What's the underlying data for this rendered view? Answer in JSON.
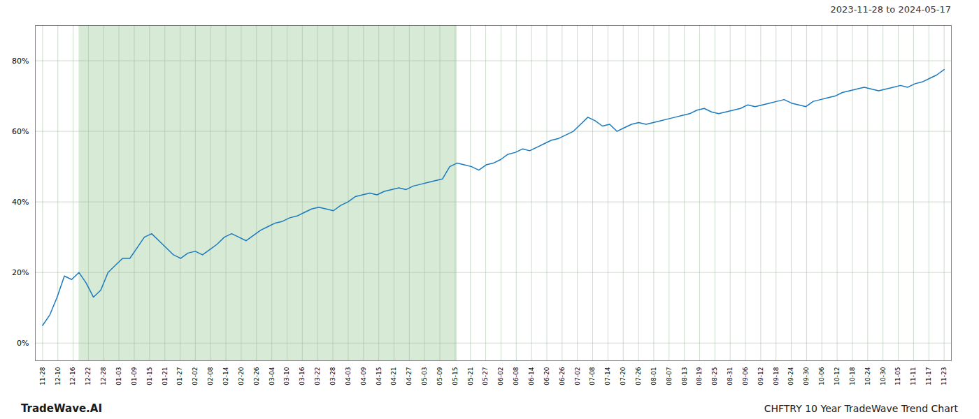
{
  "chart_data": {
    "type": "line",
    "title": "CHFTRY 10 Year TradeWave Trend Chart",
    "subtitle": "2023-11-28 to 2024-05-17",
    "caption": "TradeWave.AI",
    "color": "#1a7abf",
    "grid": true,
    "shaded_region": {
      "x": [
        5,
        57
      ],
      "color": "#d6ead6"
    },
    "xlim": [
      -1,
      125
    ],
    "xtick_labels": [
      "11-28",
      "12-10",
      "12-16",
      "12-22",
      "12-28",
      "01-03",
      "01-09",
      "01-15",
      "01-21",
      "01-27",
      "02-02",
      "02-08",
      "02-14",
      "02-20",
      "02-26",
      "03-04",
      "03-10",
      "03-16",
      "03-22",
      "03-28",
      "04-03",
      "04-09",
      "04-15",
      "04-21",
      "04-27",
      "05-03",
      "05-09",
      "05-15",
      "05-21",
      "05-27",
      "06-02",
      "06-08",
      "06-14",
      "06-20",
      "06-26",
      "07-02",
      "07-08",
      "07-14",
      "07-20",
      "07-26",
      "08-01",
      "08-07",
      "08-13",
      "08-19",
      "08-25",
      "08-31",
      "09-06",
      "09-12",
      "09-18",
      "09-24",
      "09-30",
      "10-06",
      "10-12",
      "10-18",
      "10-24",
      "10-30",
      "11-05",
      "11-11",
      "11-17",
      "11-23"
    ],
    "ylim": [
      -5,
      90
    ],
    "yticks": [
      {
        "value": 0,
        "label": "0%"
      },
      {
        "value": 20,
        "label": "20%"
      },
      {
        "value": 40,
        "label": "40%"
      },
      {
        "value": 60,
        "label": "60%"
      },
      {
        "value": 80,
        "label": "80%"
      }
    ],
    "values": [
      5.0,
      8.0,
      13.0,
      19.0,
      18.0,
      20.0,
      17.0,
      13.0,
      15.0,
      20.0,
      22.0,
      24.0,
      24.0,
      27.0,
      30.0,
      31.0,
      29.0,
      27.0,
      25.0,
      24.0,
      25.5,
      26.0,
      25.0,
      26.5,
      28.0,
      30.0,
      31.0,
      30.0,
      29.0,
      30.5,
      32.0,
      33.0,
      34.0,
      34.5,
      35.5,
      36.0,
      37.0,
      38.0,
      38.5,
      38.0,
      37.5,
      39.0,
      40.0,
      41.5,
      42.0,
      42.5,
      42.0,
      43.0,
      43.5,
      44.0,
      43.5,
      44.5,
      45.0,
      45.5,
      46.0,
      46.5,
      50.0,
      51.0,
      50.5,
      50.0,
      49.0,
      50.5,
      51.0,
      52.0,
      53.5,
      54.0,
      55.0,
      54.5,
      55.5,
      56.5,
      57.5,
      58.0,
      59.0,
      60.0,
      62.0,
      64.0,
      63.0,
      61.5,
      62.0,
      60.0,
      61.0,
      62.0,
      62.5,
      62.0,
      62.5,
      63.0,
      63.5,
      64.0,
      64.5,
      65.0,
      66.0,
      66.5,
      65.5,
      65.0,
      65.5,
      66.0,
      66.5,
      67.5,
      67.0,
      67.5,
      68.0,
      68.5,
      69.0,
      68.0,
      67.5,
      67.0,
      68.5,
      69.0,
      69.5,
      70.0,
      71.0,
      71.5,
      72.0,
      72.5,
      72.0,
      71.5,
      72.0,
      72.5,
      73.0,
      72.5,
      73.5,
      74.0,
      75.0,
      76.0,
      77.5
    ]
  }
}
